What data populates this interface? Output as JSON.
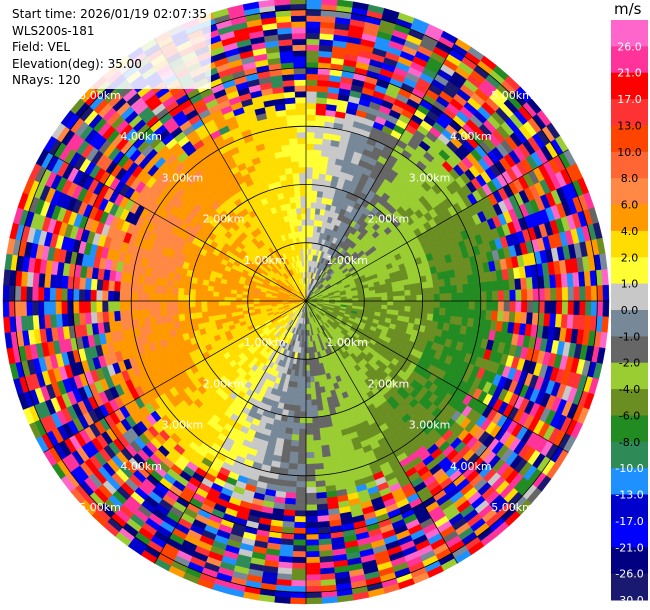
{
  "info": {
    "start_time": "Start time: 2026/01/19 02:07:35",
    "station": "WLS200s-181",
    "field": "Field: VEL",
    "elevation": "Elevation(deg): 35.00",
    "nrays": "NRays: 120"
  },
  "chart_data": {
    "type": "heatmap",
    "projection": "polar PPI",
    "field": "VEL",
    "elevation_deg": 35.0,
    "n_rays": 120,
    "range_ring_labels": [
      "1.00km",
      "2.00km",
      "3.00km",
      "4.00km",
      "5.00km"
    ],
    "range_ring_km": [
      1,
      2,
      3,
      4,
      5
    ],
    "max_range_km": 5.2,
    "colorbar": {
      "unit": "m/s",
      "tick_labels": [
        "26.0",
        "21.0",
        "17.0",
        "13.0",
        "10.0",
        "8.0",
        "6.0",
        "4.0",
        "2.0",
        "1.0",
        "0.0",
        "-1.0",
        "-2.0",
        "-4.0",
        "-6.0",
        "-8.0",
        "-10.0",
        "-13.0",
        "-17.0",
        "-21.0",
        "-26.0",
        "-30.0"
      ],
      "bounds": [
        30,
        26,
        21,
        17,
        13,
        10,
        8,
        6,
        4,
        2,
        1,
        0,
        -1,
        -2,
        -4,
        -6,
        -8,
        -10,
        -13,
        -17,
        -21,
        -26,
        -30
      ],
      "colors": [
        "#ff66cc",
        "#ff3399",
        "#ff0000",
        "#ff3333",
        "#ff4400",
        "#ff6633",
        "#ff8844",
        "#ff9900",
        "#ffdd00",
        "#ffff33",
        "#c8c8c8",
        "#778899",
        "#666666",
        "#9acd32",
        "#6b8e23",
        "#228b22",
        "#2e8b57",
        "#1e90ff",
        "#0000cd",
        "#0000ff",
        "#000080",
        "#191970"
      ]
    }
  }
}
